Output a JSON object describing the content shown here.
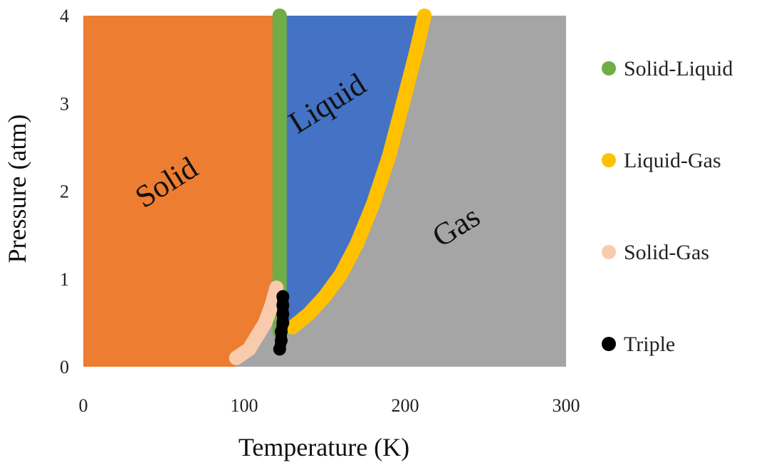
{
  "chart_data": {
    "type": "scatter",
    "title": "",
    "xlabel": "Temperature (K)",
    "ylabel": "Pressure (atm)",
    "xlim": [
      0,
      300
    ],
    "ylim": [
      0,
      4
    ],
    "xticks": [
      0,
      100,
      200,
      300
    ],
    "yticks": [
      0,
      1,
      2,
      3,
      4
    ],
    "grid": false,
    "legend_position": "right",
    "regions": [
      {
        "name": "Solid",
        "color": "#ED7D31",
        "label_at": [
          55,
          2.0
        ]
      },
      {
        "name": "Liquid",
        "color": "#4472C4",
        "label_at": [
          155,
          2.9
        ]
      },
      {
        "name": "Gas",
        "color": "#A5A5A5",
        "label_at": [
          235,
          1.5
        ]
      }
    ],
    "series": [
      {
        "name": "Solid-Liquid",
        "color": "#70AD47",
        "points": [
          [
            122,
            0.4
          ],
          [
            122,
            1.0
          ],
          [
            122,
            1.6
          ],
          [
            122,
            2.2
          ],
          [
            122,
            2.8
          ],
          [
            122,
            3.4
          ],
          [
            122,
            4.0
          ]
        ]
      },
      {
        "name": "Liquid-Gas",
        "color": "#FFC000",
        "points": [
          [
            130,
            0.45
          ],
          [
            140,
            0.6
          ],
          [
            150,
            0.8
          ],
          [
            160,
            1.05
          ],
          [
            170,
            1.4
          ],
          [
            180,
            1.85
          ],
          [
            190,
            2.4
          ],
          [
            200,
            3.1
          ],
          [
            207,
            3.6
          ],
          [
            212,
            4.0
          ]
        ]
      },
      {
        "name": "Solid-Gas",
        "color": "#F8CBAD",
        "points": [
          [
            95,
            0.1
          ],
          [
            103,
            0.2
          ],
          [
            108,
            0.35
          ],
          [
            113,
            0.5
          ],
          [
            117,
            0.7
          ],
          [
            120,
            0.9
          ]
        ]
      },
      {
        "name": "Triple",
        "color": "#000000",
        "points": [
          [
            122,
            0.2
          ],
          [
            123,
            0.3
          ],
          [
            123,
            0.4
          ],
          [
            124,
            0.5
          ],
          [
            124,
            0.6
          ],
          [
            124,
            0.7
          ],
          [
            124,
            0.8
          ]
        ]
      }
    ]
  }
}
